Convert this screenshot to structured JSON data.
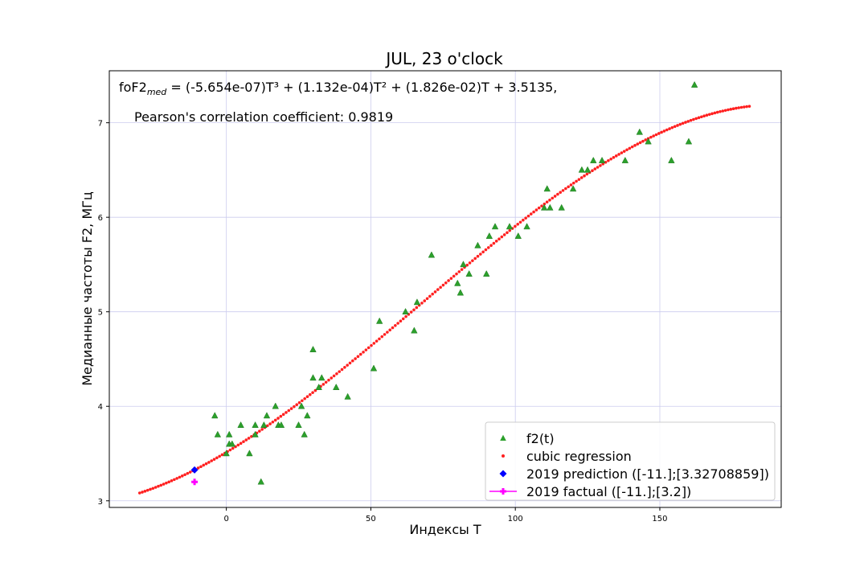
{
  "chart_data": {
    "type": "scatter",
    "title": "JUL, 23 o'clock",
    "annotations": {
      "equation_prefix": "foF2",
      "equation_sub": "med",
      "equation_rest": " = (-5.654e-07)T³ + (1.132e-04)T² + (1.826e-02)T + 3.5135,",
      "pearson": "Pearson's correlation coefficient: 0.9819"
    },
    "xlabel": "Индексы T",
    "ylabel": "Медианные частоты F2, МГц",
    "xlim": [
      -40.5,
      192
    ],
    "ylim": [
      2.93,
      7.55
    ],
    "xticks": [
      0,
      50,
      100,
      150
    ],
    "yticks": [
      3,
      4,
      5,
      6,
      7
    ],
    "grid": true,
    "legend_position": "lower-right",
    "colors": {
      "observed": "#2ca02c",
      "regression": "#ff2020",
      "prediction": "#0000ff",
      "factual": "#ff00ff",
      "grid": "#ccccee"
    },
    "regression_coefficients": {
      "a3": -5.654e-07,
      "a2": 0.0001132,
      "a1": 0.01826,
      "a0": 3.5135
    },
    "regression_range": [
      -30,
      181
    ],
    "series": [
      {
        "name": "f2(t)",
        "marker": "triangle",
        "points": [
          [
            -4,
            3.9
          ],
          [
            -3,
            3.7
          ],
          [
            0,
            3.5
          ],
          [
            1,
            3.7
          ],
          [
            1,
            3.6
          ],
          [
            2,
            3.6
          ],
          [
            5,
            3.8
          ],
          [
            8,
            3.5
          ],
          [
            10,
            3.8
          ],
          [
            10,
            3.7
          ],
          [
            12,
            3.2
          ],
          [
            13,
            3.8
          ],
          [
            14,
            3.9
          ],
          [
            17,
            4.0
          ],
          [
            18,
            3.8
          ],
          [
            19,
            3.8
          ],
          [
            25,
            3.8
          ],
          [
            26,
            4.0
          ],
          [
            27,
            3.7
          ],
          [
            28,
            3.9
          ],
          [
            30,
            4.6
          ],
          [
            30,
            4.3
          ],
          [
            32,
            4.2
          ],
          [
            33,
            4.3
          ],
          [
            38,
            4.2
          ],
          [
            42,
            4.1
          ],
          [
            51,
            4.4
          ],
          [
            53,
            4.9
          ],
          [
            62,
            5.0
          ],
          [
            65,
            4.8
          ],
          [
            66,
            5.1
          ],
          [
            71,
            5.6
          ],
          [
            80,
            5.3
          ],
          [
            81,
            5.2
          ],
          [
            82,
            5.5
          ],
          [
            84,
            5.4
          ],
          [
            87,
            5.7
          ],
          [
            90,
            5.4
          ],
          [
            91,
            5.8
          ],
          [
            93,
            5.9
          ],
          [
            98,
            5.9
          ],
          [
            101,
            5.8
          ],
          [
            104,
            5.9
          ],
          [
            110,
            6.1
          ],
          [
            111,
            6.3
          ],
          [
            112,
            6.1
          ],
          [
            116,
            6.1
          ],
          [
            120,
            6.3
          ],
          [
            123,
            6.5
          ],
          [
            125,
            6.5
          ],
          [
            127,
            6.6
          ],
          [
            130,
            6.6
          ],
          [
            138,
            6.6
          ],
          [
            143,
            6.9
          ],
          [
            146,
            6.8
          ],
          [
            154,
            6.6
          ],
          [
            160,
            6.8
          ],
          [
            162,
            7.4
          ]
        ]
      },
      {
        "name": "cubic regression",
        "marker": "dot"
      },
      {
        "name": "2019 prediction ([-11.];[3.32708859])",
        "marker": "diamond",
        "points": [
          [
            -11,
            3.32708859
          ]
        ]
      },
      {
        "name": "2019 factual ([-11.];[3.2])",
        "marker": "plus",
        "points": [
          [
            -11,
            3.2
          ]
        ]
      }
    ]
  }
}
